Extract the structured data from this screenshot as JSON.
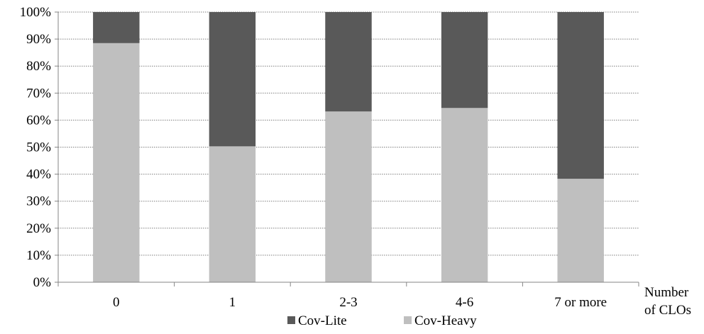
{
  "chart_data": {
    "type": "bar",
    "stacked": true,
    "percent": true,
    "categories": [
      "0",
      "1",
      "2-3",
      "4-6",
      "7 or more"
    ],
    "series": [
      {
        "name": "Cov-Heavy",
        "values": [
          88.5,
          50.3,
          63.2,
          64.5,
          38.3
        ],
        "color": "#bfbfbf"
      },
      {
        "name": "Cov-Lite",
        "values": [
          11.5,
          49.7,
          36.8,
          35.5,
          61.7
        ],
        "color": "#595959"
      }
    ],
    "xlabel": [
      "Number",
      "of CLOs"
    ],
    "ylabel": "",
    "ylim": [
      0,
      100
    ],
    "yticks": [
      "0%",
      "10%",
      "20%",
      "30%",
      "40%",
      "50%",
      "60%",
      "70%",
      "80%",
      "90%",
      "100%"
    ],
    "grid": "horizontal dotted",
    "legend": {
      "placement": "bottom",
      "items": [
        {
          "label": "Cov-Lite",
          "color": "#595959"
        },
        {
          "label": "Cov-Heavy",
          "color": "#bfbfbf"
        }
      ]
    }
  }
}
